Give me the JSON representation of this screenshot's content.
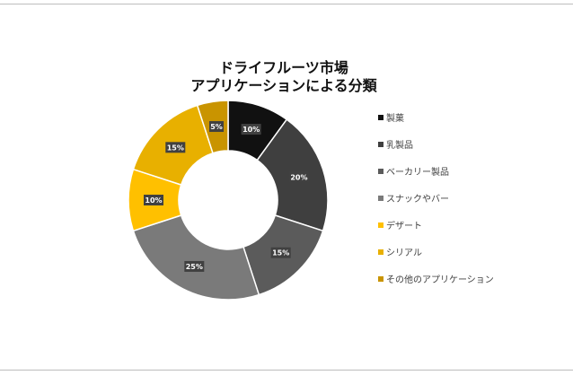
{
  "chart_data": {
    "type": "pie",
    "title": [
      "ドライフルーツ市場",
      "アプリケーションによる分類"
    ],
    "categories": [
      "製菓",
      "乳製品",
      "ベーカリー製品",
      "スナックやバー",
      "デザート",
      "シリアル",
      "その他のアプリケーション"
    ],
    "values": [
      10,
      20,
      15,
      25,
      10,
      15,
      5
    ],
    "data_labels": [
      "10%",
      "20%",
      "15%",
      "25%",
      "10%",
      "15%",
      "5%"
    ],
    "colors": [
      "#111111",
      "#3f3f3f",
      "#5b5b5b",
      "#7a7a7a",
      "#ffc000",
      "#e8b000",
      "#c99400"
    ],
    "legend": "right",
    "donut": true
  }
}
